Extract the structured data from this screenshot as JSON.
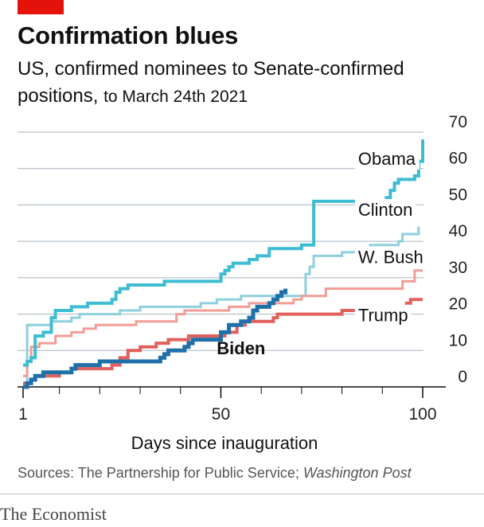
{
  "title": "Confirmation blues",
  "subtitle_a": "US, confirmed nominees to Senate-confirmed positions,",
  "subtitle_b": "to March 24th 2021",
  "source_label": "Sources: The Partnership for Public Service; ",
  "source_italic": "Washington Post",
  "brand": "The Economist",
  "colors": {
    "brand_red": "#e3120b",
    "grid": "#a7b4bf",
    "axis": "#0c0c0c"
  },
  "chart_data": {
    "type": "line",
    "step": true,
    "xlabel": "Days since inauguration",
    "ylabel": "",
    "xlim": [
      1,
      100
    ],
    "ylim": [
      0,
      70
    ],
    "x_ticks": [
      1,
      50,
      100
    ],
    "y_ticks": [
      0,
      10,
      20,
      30,
      40,
      50,
      60,
      70
    ],
    "grid": true,
    "y_axis_side": "right",
    "series": [
      {
        "name": "Obama",
        "color": "#3ebcd2",
        "width": 4,
        "points": [
          [
            1,
            6
          ],
          [
            2,
            7
          ],
          [
            3,
            8
          ],
          [
            4,
            14
          ],
          [
            6,
            15
          ],
          [
            8,
            19
          ],
          [
            9,
            21
          ],
          [
            13,
            22
          ],
          [
            17,
            23
          ],
          [
            22,
            23
          ],
          [
            23,
            24
          ],
          [
            24,
            26
          ],
          [
            25,
            27
          ],
          [
            27,
            28
          ],
          [
            36,
            29
          ],
          [
            50,
            31
          ],
          [
            51,
            32
          ],
          [
            52,
            33
          ],
          [
            53,
            34
          ],
          [
            57,
            35
          ],
          [
            59,
            36
          ],
          [
            62,
            38
          ],
          [
            67,
            38
          ],
          [
            70,
            39
          ],
          [
            73,
            51
          ],
          [
            77,
            51
          ],
          [
            90,
            51
          ],
          [
            91,
            52
          ],
          [
            92,
            54
          ],
          [
            93,
            56
          ],
          [
            94,
            57
          ],
          [
            98,
            58
          ],
          [
            99,
            62
          ],
          [
            100,
            68
          ]
        ]
      },
      {
        "name": "Clinton",
        "color": "#8ed0dd",
        "width": 3,
        "points": [
          [
            1,
            0
          ],
          [
            2,
            17
          ],
          [
            7,
            17
          ],
          [
            8,
            18
          ],
          [
            13,
            19
          ],
          [
            15,
            20
          ],
          [
            25,
            21
          ],
          [
            30,
            22
          ],
          [
            45,
            23
          ],
          [
            49,
            24
          ],
          [
            55,
            25
          ],
          [
            58,
            25
          ],
          [
            70,
            25
          ],
          [
            71,
            31
          ],
          [
            72,
            33
          ],
          [
            73,
            36
          ],
          [
            80,
            37
          ],
          [
            84,
            38
          ],
          [
            87,
            39
          ],
          [
            90,
            39
          ],
          [
            94,
            40
          ],
          [
            95,
            42
          ],
          [
            97,
            42
          ],
          [
            99,
            44
          ]
        ]
      },
      {
        "name": "W. Bush",
        "color": "#f29d96",
        "width": 3,
        "points": [
          [
            1,
            3
          ],
          [
            2,
            7
          ],
          [
            3,
            11
          ],
          [
            5,
            12
          ],
          [
            9,
            14
          ],
          [
            13,
            15
          ],
          [
            16,
            16
          ],
          [
            19,
            17
          ],
          [
            29,
            18
          ],
          [
            39,
            20
          ],
          [
            41,
            21
          ],
          [
            52,
            22
          ],
          [
            57,
            23
          ],
          [
            65,
            23
          ],
          [
            68,
            24
          ],
          [
            70,
            25
          ],
          [
            76,
            27
          ],
          [
            90,
            27
          ],
          [
            95,
            29
          ],
          [
            98,
            32
          ],
          [
            100,
            32
          ]
        ]
      },
      {
        "name": "Trump",
        "color": "#e0605c",
        "width": 4,
        "points": [
          [
            1,
            1
          ],
          [
            3,
            2
          ],
          [
            4,
            3
          ],
          [
            10,
            4
          ],
          [
            13,
            5
          ],
          [
            23,
            6
          ],
          [
            25,
            8
          ],
          [
            27,
            10
          ],
          [
            30,
            11
          ],
          [
            34,
            12
          ],
          [
            37,
            13
          ],
          [
            42,
            14
          ],
          [
            46,
            14
          ],
          [
            51,
            15
          ],
          [
            54,
            17
          ],
          [
            56,
            18
          ],
          [
            63,
            19
          ],
          [
            64,
            20
          ],
          [
            75,
            20
          ],
          [
            80,
            21
          ],
          [
            95,
            22
          ],
          [
            96,
            23
          ],
          [
            97,
            24
          ],
          [
            100,
            24
          ]
        ]
      },
      {
        "name": "Biden",
        "color": "#1f6fa9",
        "width": 5,
        "points": [
          [
            1,
            0
          ],
          [
            2,
            1
          ],
          [
            3,
            2
          ],
          [
            4,
            3
          ],
          [
            6,
            4
          ],
          [
            13,
            5
          ],
          [
            14,
            6
          ],
          [
            20,
            7
          ],
          [
            35,
            8
          ],
          [
            36,
            9
          ],
          [
            37,
            10
          ],
          [
            41,
            11
          ],
          [
            42,
            12
          ],
          [
            43,
            13
          ],
          [
            45,
            13
          ],
          [
            50,
            15
          ],
          [
            52,
            17
          ],
          [
            55,
            18
          ],
          [
            57,
            19
          ],
          [
            58,
            21
          ],
          [
            59,
            22
          ],
          [
            62,
            23
          ],
          [
            63,
            24
          ],
          [
            64,
            25
          ],
          [
            65,
            26
          ],
          [
            66,
            27
          ]
        ]
      }
    ],
    "series_labels": [
      {
        "text": "Obama",
        "x": 84,
        "y": 61
      },
      {
        "text": "Clinton",
        "x": 84,
        "y": 47
      },
      {
        "text": "W. Bush",
        "x": 84,
        "y": 34
      },
      {
        "text": "Trump",
        "x": 84,
        "y": 18
      },
      {
        "text": "Biden",
        "x": 55,
        "y": 9
      }
    ]
  }
}
